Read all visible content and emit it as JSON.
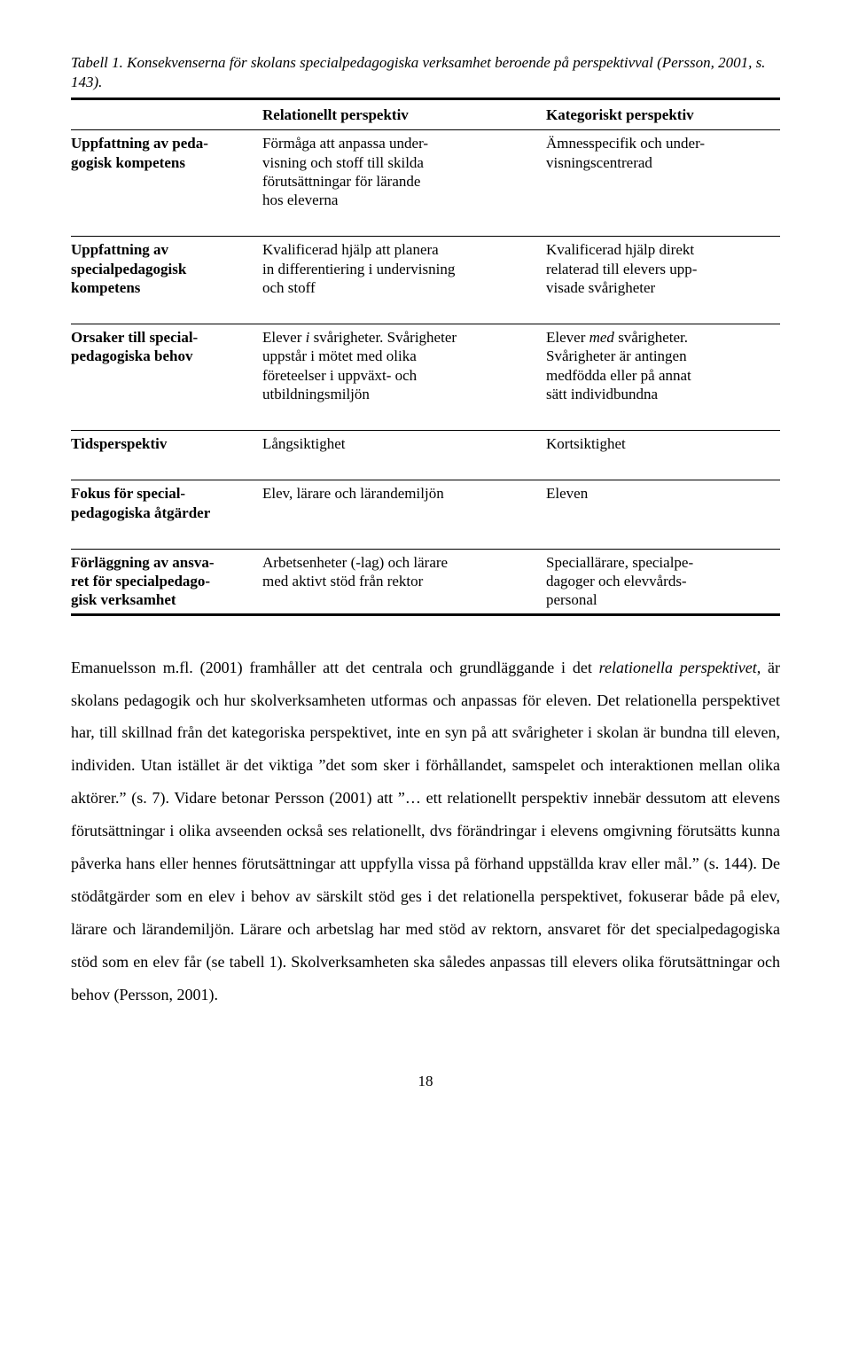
{
  "caption": "Tabell 1. Konsekvenserna för skolans specialpedagogiska verksamhet beroende på perspektivval (Persson, 2001, s. 143).",
  "table": {
    "columns": {
      "label_header": "",
      "rel_header": "Relationellt perspektiv",
      "kat_header": "Kategoriskt perspektiv"
    },
    "rows": [
      {
        "label": "Uppfattning av peda-\ngogisk kompetens",
        "rel": "Förmåga att anpassa under-\nvisning och stoff till skilda\nförutsättningar för lärande\nhos eleverna",
        "kat": "Ämnesspecifik och under-\nvisningscentrerad"
      },
      {
        "label": "Uppfattning av\nspecialpedagogisk\nkompetens",
        "rel": "Kvalificerad hjälp att planera\nin differentiering i undervisning\noch stoff",
        "kat": "Kvalificerad hjälp direkt\nrelaterad till elevers upp-\nvisade svårigheter"
      },
      {
        "label": "Orsaker till special-\npedagogiska behov",
        "rel_prefix": "Elever ",
        "rel_em": "i",
        "rel_suffix": " svårigheter. Svårigheter\nuppstår i mötet med olika\nföreteelser i uppväxt- och\nutbildningsmiljön",
        "kat_prefix": "Elever ",
        "kat_em": "med",
        "kat_suffix": " svårigheter.\nSvårigheter är antingen\nmedfödda eller på annat\nsätt individbundna"
      },
      {
        "label": "Tidsperspektiv",
        "rel": "Långsiktighet",
        "kat": "Kortsiktighet"
      },
      {
        "label": "Fokus för special-\npedagogiska åtgärder",
        "rel": "Elev, lärare och lärandemiljön",
        "kat": "Eleven"
      },
      {
        "label": "Förläggning av ansva-\nret för specialpedago-\ngisk verksamhet",
        "rel": "Arbetsenheter (-lag) och lärare\nmed aktivt stöd från rektor",
        "kat": "Speciallärare, specialpe-\ndagoger och elevvårds-\npersonal"
      }
    ]
  },
  "body": {
    "p1_a": "Emanuelsson m.fl. (2001) framhåller att det centrala och grundläggande i det ",
    "p1_em1": "relationella perspektivet",
    "p1_b": ", är skolans pedagogik och hur skolverksamheten utformas och anpassas för eleven. Det relationella perspektivet har, till skillnad från det kategoriska perspektivet, inte en syn på att svårigheter i skolan är bundna till eleven, individen. Utan istället är det viktiga ”det som sker i förhållandet, samspelet och interaktionen mellan olika aktörer.” (s. 7). Vidare betonar Persson (2001) att ”… ett relationellt perspektiv innebär dessutom att elevens förutsättningar i olika avseenden också ses relationellt, dvs förändringar i elevens omgivning förutsätts kunna påverka hans eller hennes förutsättningar att uppfylla vissa på förhand uppställda krav eller mål.” (s. 144). De stödåtgärder som en elev i behov av särskilt stöd ges i det relationella perspektivet, fokuserar både på elev, lärare och lärandemiljön. Lärare och arbetslag har med stöd av rektorn, ansvaret för det specialpedagogiska stöd som en elev får (se tabell 1). Skolverksamheten ska således anpassas till elevers olika förutsättningar och behov (Persson, 2001)."
  },
  "page_number": "18"
}
